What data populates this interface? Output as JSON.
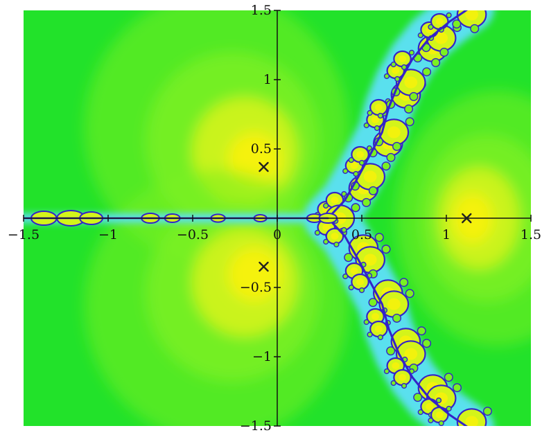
{
  "chart_data": {
    "type": "heatmap",
    "title": "",
    "xlabel": "",
    "ylabel": "",
    "xlim": [
      -1.5,
      1.5
    ],
    "ylim": [
      -1.5,
      1.5
    ],
    "grid": false,
    "legend": "none",
    "x_ticks": [
      {
        "value": -1.5,
        "label": "−1.5"
      },
      {
        "value": -1,
        "label": "−1"
      },
      {
        "value": -0.5,
        "label": "−0.5"
      },
      {
        "value": 0,
        "label": "0"
      },
      {
        "value": 0.5,
        "label": "0.5"
      },
      {
        "value": 1,
        "label": "1"
      },
      {
        "value": 1.5,
        "label": "1.5"
      }
    ],
    "y_ticks": [
      {
        "value": 1.5,
        "label": "1.5"
      },
      {
        "value": 1,
        "label": "1"
      },
      {
        "value": 0.5,
        "label": "0.5"
      },
      {
        "value": -0.5,
        "label": "−0.5"
      },
      {
        "value": -1,
        "label": "−1"
      },
      {
        "value": -1.5,
        "label": "−1.5"
      }
    ],
    "roots": [
      {
        "x": -0.08,
        "y": 0.37
      },
      {
        "x": -0.08,
        "y": -0.35
      },
      {
        "x": 1.12,
        "y": 0.0
      }
    ],
    "colors": {
      "basin_far": "#22e22a",
      "basin_mid": "#7af022",
      "basin_near": "#d4f41a",
      "basin_core": "#f5f20c",
      "boundary_dark": "#3422c8",
      "boundary_light": "#5ae0ee",
      "axis": "#111111"
    }
  }
}
